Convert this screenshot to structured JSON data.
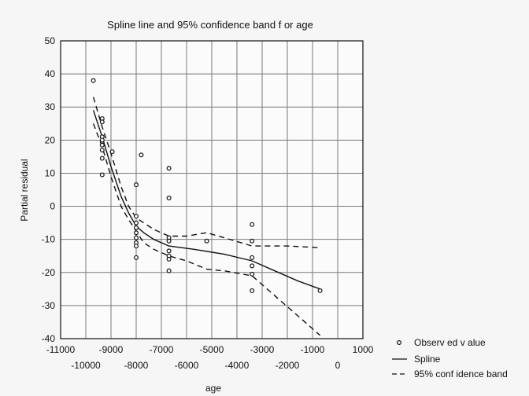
{
  "chart_data": {
    "type": "scatter",
    "title": "Spline line and 95% confidence band f or age",
    "xlabel": "age",
    "ylabel": "Partial residual",
    "xlim": [
      -11000,
      1000
    ],
    "ylim": [
      -40,
      50
    ],
    "grid": true,
    "x_ticks_upper": [
      {
        "v": -11000,
        "label": "-11000"
      },
      {
        "v": -9000,
        "label": "-9000"
      },
      {
        "v": -7000,
        "label": "-7000"
      },
      {
        "v": -5000,
        "label": "-5000"
      },
      {
        "v": -3000,
        "label": "-3000"
      },
      {
        "v": -1000,
        "label": "-1000"
      },
      {
        "v": 1000,
        "label": "1000"
      }
    ],
    "x_ticks_lower": [
      {
        "v": -10000,
        "label": "-10000"
      },
      {
        "v": -8000,
        "label": "-8000"
      },
      {
        "v": -6000,
        "label": "-6000"
      },
      {
        "v": -4000,
        "label": "-4000"
      },
      {
        "v": -2000,
        "label": "-2000"
      },
      {
        "v": 0,
        "label": "0"
      }
    ],
    "y_ticks": [
      {
        "v": 50,
        "label": "50"
      },
      {
        "v": 40,
        "label": "40"
      },
      {
        "v": 30,
        "label": "30"
      },
      {
        "v": 20,
        "label": "20"
      },
      {
        "v": 10,
        "label": "10"
      },
      {
        "v": 0,
        "label": "0"
      },
      {
        "v": -10,
        "label": "-10"
      },
      {
        "v": -20,
        "label": "-20"
      },
      {
        "v": -30,
        "label": "-30"
      },
      {
        "v": -40,
        "label": "-40"
      }
    ],
    "legend": {
      "placement": "bottom-right",
      "entries": [
        {
          "key": "observed",
          "label": "Observ ed v alue"
        },
        {
          "key": "spline",
          "label": "Spline"
        },
        {
          "key": "band",
          "label": "95% conf idence band"
        }
      ]
    },
    "observed": [
      [
        -9700,
        38
      ],
      [
        -9350,
        26.5
      ],
      [
        -9350,
        25.5
      ],
      [
        -9350,
        21
      ],
      [
        -9350,
        20
      ],
      [
        -9350,
        18.5
      ],
      [
        -9350,
        17
      ],
      [
        -9350,
        14.5
      ],
      [
        -9350,
        9.5
      ],
      [
        -8950,
        16.5
      ],
      [
        -7800,
        15.5
      ],
      [
        -8000,
        6.5
      ],
      [
        -8000,
        -3
      ],
      [
        -8000,
        -5
      ],
      [
        -8000,
        -6.5
      ],
      [
        -8000,
        -8
      ],
      [
        -8000,
        -9.5
      ],
      [
        -8000,
        -11
      ],
      [
        -8000,
        -12
      ],
      [
        -8000,
        -15.5
      ],
      [
        -6700,
        11.5
      ],
      [
        -6700,
        2.5
      ],
      [
        -6700,
        -9.5
      ],
      [
        -6700,
        -10.5
      ],
      [
        -6700,
        -13.5
      ],
      [
        -6700,
        -15
      ],
      [
        -6700,
        -16
      ],
      [
        -6700,
        -19.5
      ],
      [
        -5200,
        -10.5
      ],
      [
        -3400,
        -5.5
      ],
      [
        -3400,
        -10.5
      ],
      [
        -3400,
        -15.5
      ],
      [
        -3400,
        -18
      ],
      [
        -3400,
        -20.5
      ],
      [
        -3400,
        -25.5
      ],
      [
        -700,
        -25.5
      ]
    ],
    "series": [
      {
        "key": "spline",
        "style": "solid",
        "x": [
          -9700,
          -9350,
          -9000,
          -8600,
          -8300,
          -8000,
          -7700,
          -7300,
          -6700,
          -5700,
          -4500,
          -3400,
          -2500,
          -1600,
          -700
        ],
        "y": [
          29,
          21,
          12,
          3,
          -2,
          -6,
          -8,
          -10,
          -12,
          -13,
          -14.5,
          -16.5,
          -19.5,
          -22.5,
          -25
        ]
      },
      {
        "key": "band_upper",
        "style": "dashed",
        "x": [
          -9700,
          -9350,
          -9000,
          -8600,
          -8300,
          -8000,
          -7700,
          -7300,
          -6700,
          -6000,
          -5200,
          -4500,
          -3400,
          -2000,
          -700
        ],
        "y": [
          33,
          24,
          16,
          6,
          0,
          -3.5,
          -5,
          -7,
          -9,
          -9,
          -8,
          -9.5,
          -12,
          -12,
          -12.5
        ]
      },
      {
        "key": "band_lower",
        "style": "dashed",
        "x": [
          -9700,
          -9350,
          -9000,
          -8600,
          -8300,
          -8000,
          -7700,
          -7300,
          -6700,
          -6000,
          -5200,
          -4500,
          -3400,
          -2500,
          -1600,
          -700
        ],
        "y": [
          25,
          18,
          9,
          0,
          -4,
          -7.5,
          -11,
          -13,
          -15,
          -16.5,
          -19,
          -19.5,
          -21,
          -27,
          -33,
          -39
        ]
      }
    ],
    "colors": {
      "ink": "#111111",
      "grid": "#7a7a7a",
      "plot_bg": "#fbfbfb",
      "page_bg": "#f6f6f6"
    }
  }
}
